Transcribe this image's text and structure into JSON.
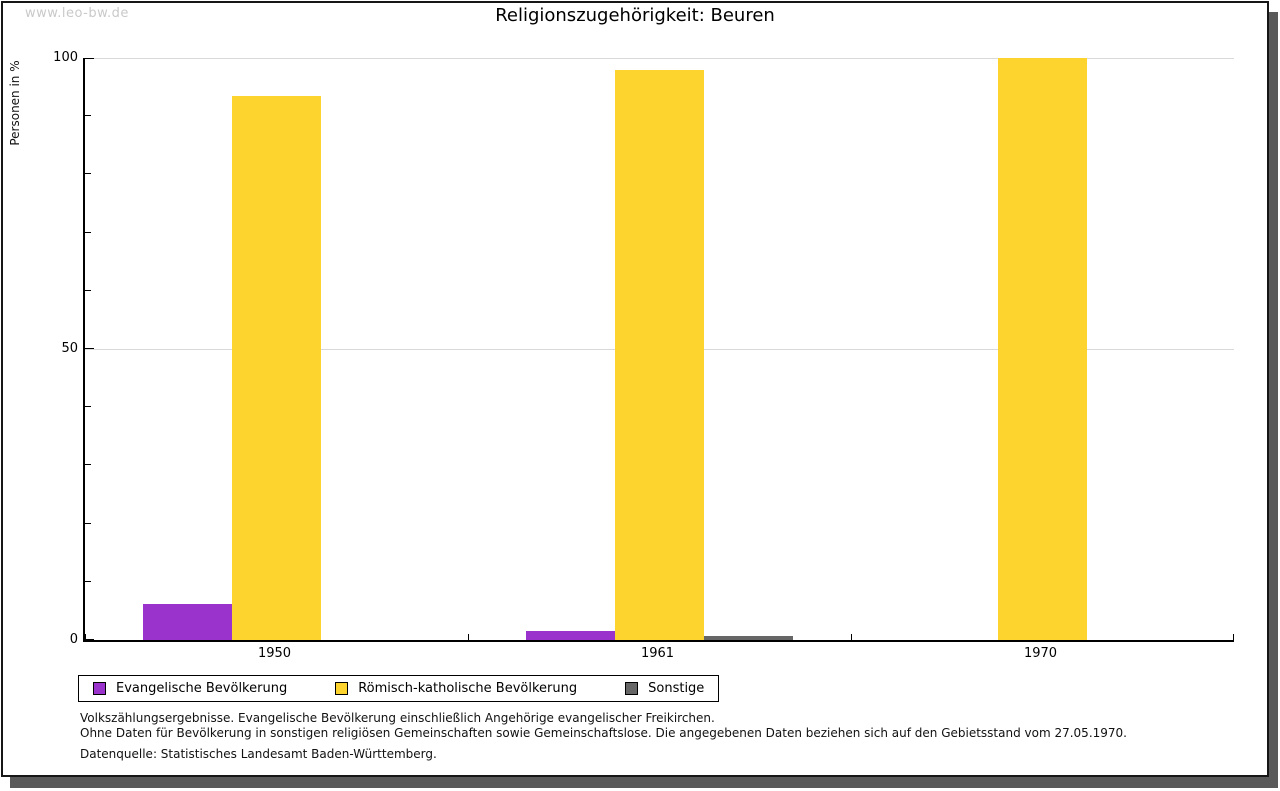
{
  "watermark": "www.leo-bw.de",
  "title": "Religionszugehörigkeit:  Beuren",
  "chart_data": {
    "type": "bar",
    "title": "Religionszugehörigkeit: Beuren",
    "ylabel": "Personen in %",
    "ylim": [
      0,
      100
    ],
    "yticks_major": [
      0,
      50,
      100
    ],
    "yticks_minor_step": 10,
    "gridlines_at": [
      50,
      100
    ],
    "grid": "horizontal light-gray at 50 and 100",
    "legend_position": "bottom-left, boxed",
    "categories": [
      "1950",
      "1961",
      "1970"
    ],
    "series": [
      {
        "name": "Evangelische Bevölkerung",
        "color": "#9933CC",
        "values": [
          6.2,
          1.5,
          0
        ]
      },
      {
        "name": "Römisch-katholische Bevölkerung",
        "color": "#FDD32E",
        "values": [
          93.5,
          97.9,
          100
        ]
      },
      {
        "name": "Sonstige",
        "color": "#666666",
        "values": [
          0,
          0.7,
          0
        ]
      }
    ]
  },
  "footnotes": {
    "line1": "Volkszählungsergebnisse. Evangelische Bevölkerung einschließlich Angehörige evangelischer Freikirchen.",
    "line2": "Ohne Daten für Bevölkerung in sonstigen religiösen Gemeinschaften sowie Gemeinschaftslose. Die angegebenen Daten beziehen sich auf den Gebietsstand vom 27.05.1970.",
    "source": "Datenquelle: Statistisches Landesamt Baden-Württemberg."
  },
  "colors": {
    "shadow": "#5a5a5a",
    "gridline": "#d9d9d9",
    "watermark": "#c9c9c9",
    "frame_border": "#161616"
  }
}
